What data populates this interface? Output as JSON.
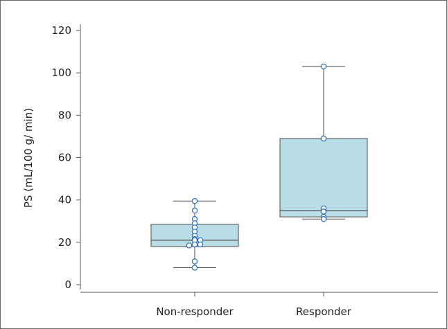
{
  "chart_data": {
    "type": "box",
    "ylabel": "PS (mL/100 g/ min)",
    "ylim": [
      0,
      120
    ],
    "yticks": [
      0,
      20,
      40,
      60,
      80,
      100,
      120
    ],
    "categories": [
      "Non-responder",
      "Responder"
    ],
    "boxes": [
      {
        "category": "Non-responder",
        "whisker_low": 8,
        "q1": 18,
        "median": 21,
        "q3": 28.5,
        "whisker_high": 39.5,
        "points": [
          39.5,
          35,
          31,
          29,
          27,
          25,
          23,
          21.5,
          21,
          21,
          19,
          19,
          18.5,
          11,
          8
        ]
      },
      {
        "category": "Responder",
        "whisker_low": 31,
        "q1": 32,
        "median": 35,
        "q3": 69,
        "whisker_high": 103,
        "points": [
          103,
          69,
          36,
          34.5,
          32,
          31
        ]
      }
    ],
    "box_color": "#b9dde6",
    "edge_color": "#4a4a4a",
    "point_edge_color": "#2c6fb0",
    "grid": false
  }
}
